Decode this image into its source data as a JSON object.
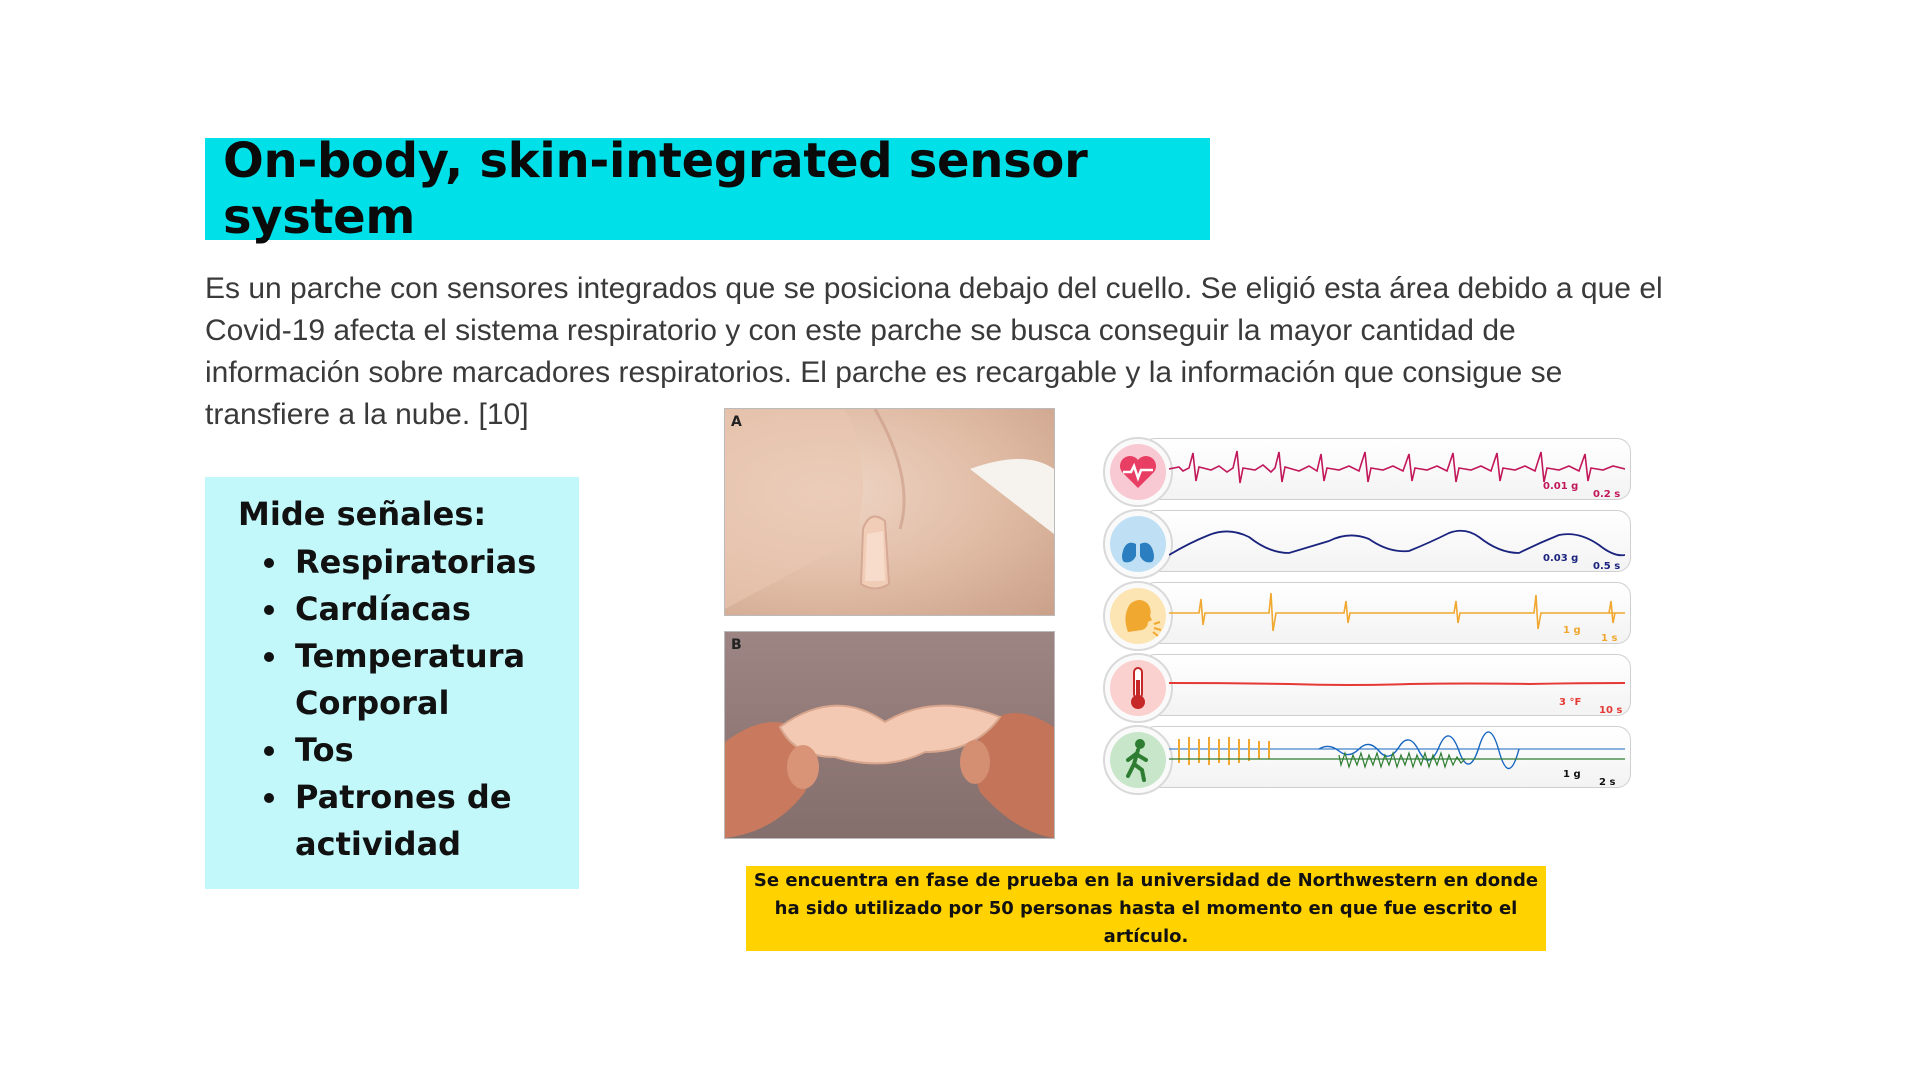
{
  "title": "On-body, skin-integrated sensor system",
  "intro": "Es un parche con sensores integrados que se posiciona debajo del cuello. Se eligió esta área debido a que el Covid-19 afecta el sistema respiratorio y con este parche se busca conseguir la mayor cantidad de información sobre marcadores respiratorios.  El parche es recargable y la información que consigue se transfiere a la nube. [10]",
  "signals": {
    "heading": "Mide señales:",
    "items": [
      "Respiratorias",
      "Cardíacas",
      "Temperatura Corporal",
      "Tos",
      "Patrones de actividad"
    ]
  },
  "figure": {
    "photo_a_label": "A",
    "photo_b_label": "B",
    "rows": [
      {
        "icon": "heart-icon",
        "color": "#c2185b",
        "scale_value": "0.01 g",
        "scale_time": "0.2 s"
      },
      {
        "icon": "lungs-icon",
        "color": "#1a237e",
        "scale_value": "0.03 g",
        "scale_time": "0.5 s"
      },
      {
        "icon": "cough-icon",
        "color": "#f0a830",
        "scale_value": "1 g",
        "scale_time": "1 s"
      },
      {
        "icon": "thermometer-icon",
        "color": "#e53935",
        "scale_value": "3 °F",
        "scale_time": "10 s"
      },
      {
        "icon": "walking-person-icon",
        "color": "#2e7d32",
        "scale_value": "1 g",
        "scale_time": "2 s"
      }
    ]
  },
  "note": "Se encuentra en fase de prueba en la universidad de Northwestern en donde ha sido utilizado por 50 personas hasta el momento en que fue escrito el artículo."
}
